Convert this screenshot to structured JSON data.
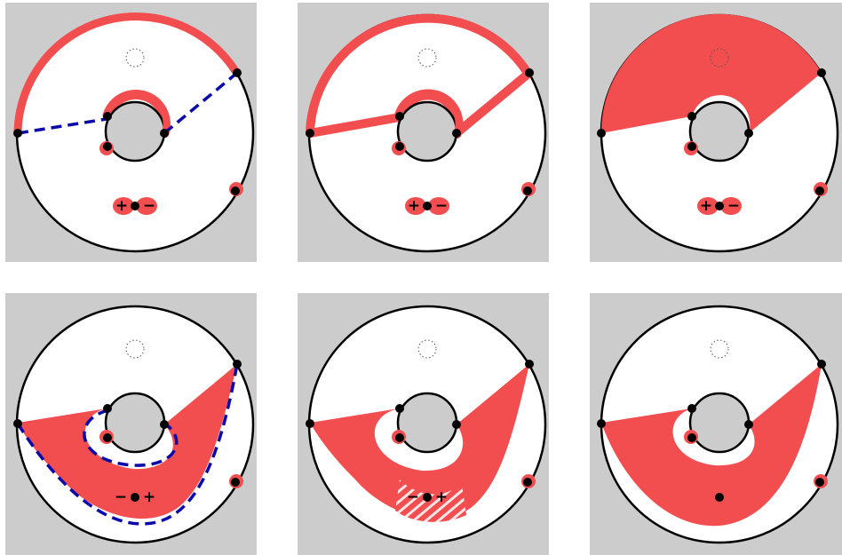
{
  "panels": [
    {
      "id": "top-left",
      "markers": {
        "left": "+",
        "right": "−"
      },
      "dot_pair_highlight": true
    },
    {
      "id": "top-middle",
      "markers": {
        "left": "+",
        "right": "−"
      },
      "dot_pair_highlight": true
    },
    {
      "id": "top-right",
      "markers": {
        "left": "+",
        "right": "−"
      },
      "dot_pair_highlight": true
    },
    {
      "id": "bottom-left",
      "markers": {
        "left": "−",
        "right": "+"
      }
    },
    {
      "id": "bottom-middle",
      "markers": {
        "left": "−",
        "right": "+"
      }
    },
    {
      "id": "bottom-right",
      "markers": {
        "left": "",
        "right": ""
      }
    }
  ],
  "colors": {
    "panel_background": "#cccccc",
    "disk_fill": "#ffffff",
    "highlight_red": "#f24d4f",
    "dashed_blue": "#0a0aaa",
    "outline": "#000000"
  }
}
